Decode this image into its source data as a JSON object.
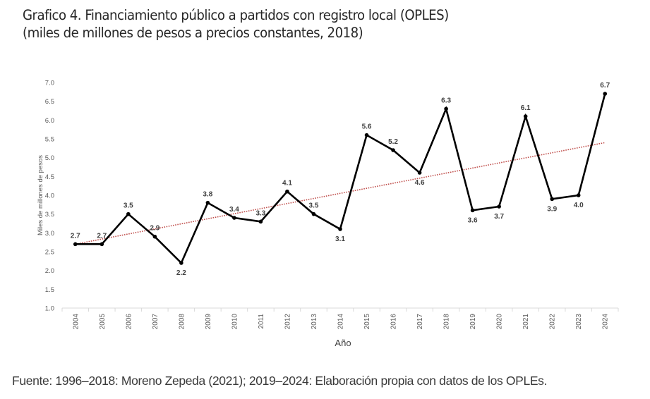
{
  "header": {
    "title_line1": "Grafico 4. Financiamiento público a partidos con registro local (OPLES)",
    "title_line2": "(miles de millones de pesos a precios constantes, 2018)"
  },
  "footer": {
    "source": "Fuente: 1996–2018: Moreno Zepeda (2021); 2019–2024: Elaboración propia con datos de los OPLEs."
  },
  "colors": {
    "series_line": "#000000",
    "trendline": "#c0504d",
    "axis_text": "#595959",
    "data_label": "#404040",
    "axis_line": "#d9d9d9"
  },
  "chart_data": {
    "type": "line",
    "title": "Grafico 4. Financiamiento público a partidos con registro local (OPLES) (miles de millones de pesos a precios constantes, 2018)",
    "xlabel": "Año",
    "ylabel": "Miles de millones de pesos",
    "categories": [
      "2004",
      "2005",
      "2006",
      "2007",
      "2008",
      "2009",
      "2010",
      "2011",
      "2012",
      "2013",
      "2014",
      "2015",
      "2016",
      "2017",
      "2018",
      "2019",
      "2020",
      "2021",
      "2022",
      "2023",
      "2024"
    ],
    "series": [
      {
        "name": "Financiamiento público",
        "values": [
          2.7,
          2.7,
          3.5,
          2.9,
          2.2,
          3.8,
          3.4,
          3.3,
          4.1,
          3.5,
          3.1,
          5.6,
          5.2,
          4.6,
          6.3,
          3.6,
          3.7,
          6.1,
          3.9,
          4.0,
          6.7
        ],
        "labels": [
          "2.7",
          "2.7",
          "3.5",
          "2.9",
          "2.2",
          "3.8",
          "3.4",
          "3.3",
          "4.1",
          "3.5",
          "3.1",
          "5.6",
          "5.2",
          "4.6",
          "6.3",
          "3.6",
          "3.7",
          "6.1",
          "3.9",
          "4.0",
          "6.7"
        ],
        "label_positions": [
          "above",
          "above",
          "above",
          "above",
          "below",
          "above",
          "above",
          "above",
          "above",
          "above",
          "below",
          "above",
          "above",
          "below",
          "above",
          "below",
          "below",
          "above",
          "below",
          "below",
          "above"
        ]
      }
    ],
    "trendline": {
      "type": "linear",
      "style": "dotted",
      "start": 2.7,
      "end": 5.4
    },
    "ylim": [
      1.0,
      7.0
    ],
    "yticks": [
      "1.0",
      "1.5",
      "2.0",
      "2.5",
      "3.0",
      "3.5",
      "4.0",
      "4.5",
      "5.0",
      "5.5",
      "6.0",
      "6.5",
      "7.0"
    ],
    "ytick_values": [
      1.0,
      1.5,
      2.0,
      2.5,
      3.0,
      3.5,
      4.0,
      4.5,
      5.0,
      5.5,
      6.0,
      6.5,
      7.0
    ],
    "grid": false,
    "legend": "none"
  }
}
